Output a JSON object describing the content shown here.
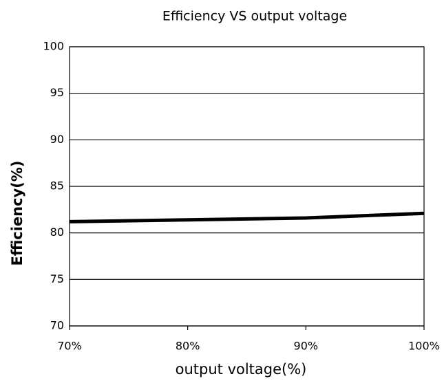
{
  "chart_data": {
    "type": "line",
    "title": "Efficiency VS output voltage",
    "xlabel": "output voltage(%)",
    "ylabel": "Efficiency(%)",
    "x": [
      70,
      80,
      90,
      100
    ],
    "series": [
      {
        "name": "Efficiency",
        "color": "#000000",
        "values": [
          81.2,
          81.4,
          81.6,
          82.1
        ]
      }
    ],
    "xlim": [
      70,
      100
    ],
    "xticks": [
      {
        "value": 70,
        "label": "70%"
      },
      {
        "value": 80,
        "label": "80%"
      },
      {
        "value": 90,
        "label": "90%"
      },
      {
        "value": 100,
        "label": "100%"
      }
    ],
    "ylim": [
      70,
      100
    ],
    "yticks": [
      70,
      75,
      80,
      85,
      90,
      95,
      100
    ],
    "grid": true
  }
}
